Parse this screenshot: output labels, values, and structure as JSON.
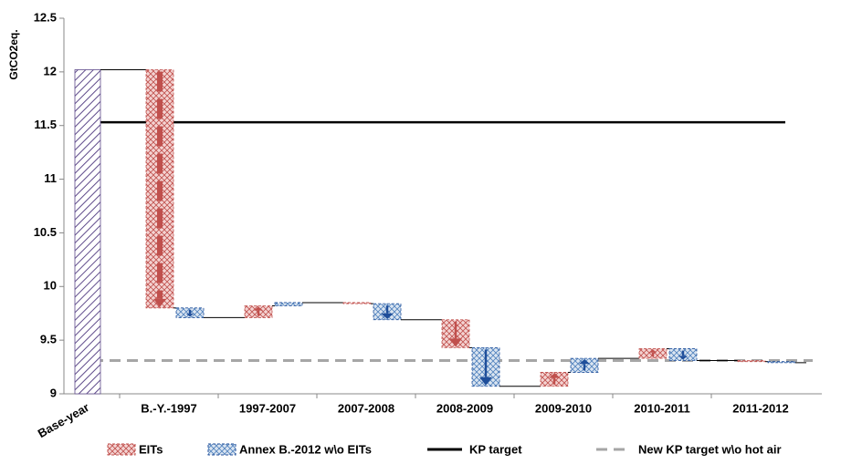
{
  "chart_data": {
    "type": "waterfall",
    "y_label": "GtCO2eq.",
    "categories": [
      "Base-year",
      "B.-Y.-1997",
      "1997-2007",
      "2007-2008",
      "2008-2009",
      "2009-2010",
      "2010-2011",
      "2011-2012"
    ],
    "base_values": [
      12.02,
      null,
      null,
      null,
      null,
      null,
      null,
      null
    ],
    "base_color": "#5f4b8b",
    "series": [
      {
        "name": "EITs",
        "color": "#c0504d",
        "values": [
          null,
          -2.22,
          0.11,
          -0.01,
          -0.26,
          0.13,
          0.09,
          -0.01
        ]
      },
      {
        "name": "Annex B.-2012 w\\o EITs",
        "color": "#1f4e9a",
        "values": [
          null,
          -0.09,
          0.03,
          -0.15,
          -0.36,
          0.13,
          -0.11,
          -0.01
        ]
      }
    ],
    "reference_lines": [
      {
        "name": "KP target",
        "value": 11.53,
        "color": "#000000",
        "dashed": false
      },
      {
        "name": "New KP target w\\o hot air",
        "value": 9.31,
        "color": "#a6a6a6",
        "dashed": true
      }
    ],
    "ylim": [
      9,
      12.5
    ],
    "yticks": [
      9,
      9.5,
      10,
      10.5,
      11,
      11.5,
      12,
      12.5
    ]
  }
}
